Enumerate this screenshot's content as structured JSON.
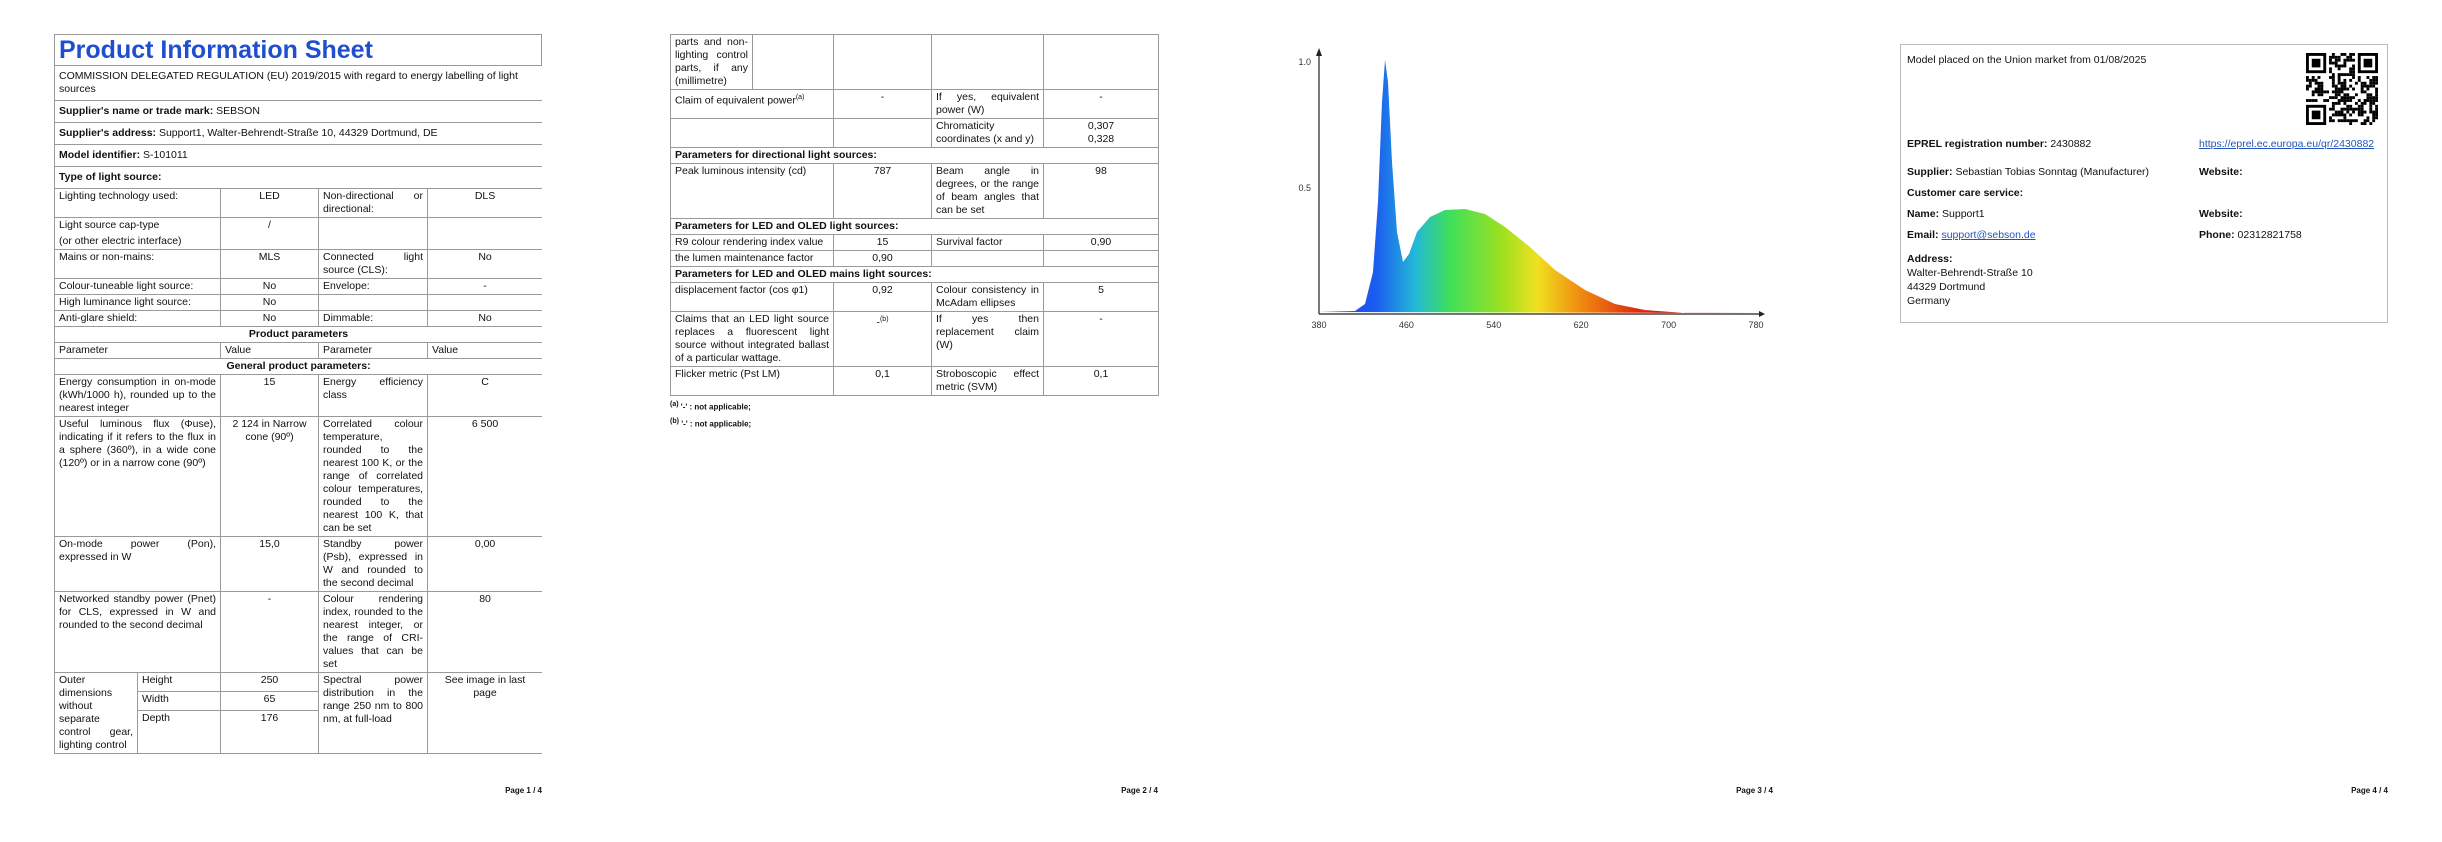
{
  "sheet": {
    "title": "Product Information Sheet",
    "regulation": "COMMISSION DELEGATED REGULATION (EU) 2019/2015 with regard to energy labelling of light sources",
    "supplier": {
      "label": "Supplier's name or trade mark:",
      "value": "SEBSON"
    },
    "address": {
      "label": "Supplier's address:",
      "value": "Support1, Walter-Behrendt-Straße 10, 44329 Dortmund, DE"
    },
    "model": {
      "label": "Model identifier:",
      "value": "S-101011"
    },
    "type_heading": "Type of light source:",
    "type_rows": [
      [
        "Lighting technology used:",
        "LED",
        "Non-directional or directional:",
        "DLS"
      ],
      [
        "Light source cap-type",
        "(or other electric interface)",
        "/"
      ],
      [
        "Mains or non-mains:",
        "MLS",
        "Connected light source (CLS):",
        "No"
      ],
      [
        "Colour-tuneable light source:",
        "No",
        "Envelope:",
        "-"
      ],
      [
        "High luminance light source:",
        "No"
      ],
      [
        "Anti-glare shield:",
        "No",
        "Dimmable:",
        "No"
      ]
    ],
    "product_parameters": "Product parameters",
    "header": [
      "Parameter",
      "Value",
      "Parameter",
      "Value"
    ],
    "general_heading": "General product parameters:",
    "general_rows": [
      [
        "Energy consumption in on-mode (kWh/1000 h), rounded up to the nearest integer",
        "15",
        "Energy efficiency class",
        "C"
      ],
      [
        "Useful luminous flux (Φuse), indicating if it refers to the flux in a sphere (360º), in a wide cone (120º) or in a narrow cone (90º)",
        "2 124 in Narrow cone (90º)",
        "Correlated colour temperature, rounded to the nearest 100 K, or the range of correlated colour temperatures, rounded to the nearest 100 K, that can be set",
        "6 500"
      ],
      [
        "On-mode power (Pon), expressed in W",
        "15,0",
        "Standby power (Psb), expressed in W and rounded to the second decimal",
        "0,00"
      ],
      [
        "Networked standby power (Pnet) for CLS, expressed in W and rounded to the second decimal",
        "-",
        "Colour rendering index, rounded to the nearest integer, or the range of CRI-values that can be set",
        "80"
      ]
    ],
    "dimensions": {
      "label": "Outer dimensions without separate control gear, lighting control",
      "label_continued": "parts and non-lighting control parts, if any (millimetre)",
      "rows": [
        [
          "Height",
          "250"
        ],
        [
          "Width",
          "65"
        ],
        [
          "Depth",
          "176"
        ]
      ]
    },
    "spectral": [
      "Spectral power distribution in the range 250 nm to 800 nm, at full-load",
      "See image in last page"
    ],
    "page_label": "Page 1 / 4"
  },
  "sheet2": {
    "rows_a": [
      [
        "Claim of equivalent power",
        "(a)",
        "-",
        "If yes, equivalent power (W)",
        "-"
      ],
      [
        "Chromaticity coordinates (x and y)",
        "0,307",
        "0,328"
      ]
    ],
    "directional_heading": "Parameters for directional light sources:",
    "directional_row": [
      "Peak luminous intensity (cd)",
      "787",
      "Beam angle in degrees, or the range of beam angles that can be set",
      "98"
    ],
    "led_heading": "Parameters for LED and OLED light sources:",
    "led_rows": [
      [
        "R9 colour rendering index value",
        "15",
        "Survival factor",
        "0,90"
      ],
      [
        "the lumen maintenance factor",
        "0,90"
      ]
    ],
    "mains_heading": "Parameters for LED and OLED mains light sources:",
    "mains_rows": [
      [
        "displacement factor (cos φ1)",
        "0,92",
        "Colour consistency in McAdam ellipses",
        "5"
      ],
      [
        "Claims that an LED light source replaces a fluorescent light source without integrated ballast of a particular wattage.",
        "-",
        "(b)",
        "If yes then replacement claim (W)",
        "-"
      ],
      [
        "Flicker metric (Pst LM)",
        "0,1",
        "Stroboscopic effect metric (SVM)",
        "0,1"
      ]
    ],
    "notes": [
      [
        "(a)",
        "'-' : not applicable;"
      ],
      [
        "(b)",
        "'-' : not applicable;"
      ]
    ],
    "page_label": "Page 2 / 4"
  },
  "spectrum": {
    "x_tick_labels": [
      "380",
      "460",
      "540",
      "620",
      "700",
      "780"
    ],
    "y_tick_labels": [
      "0.5",
      "1.0"
    ],
    "page_label": "Page 3 / 4"
  },
  "contact": {
    "market": "Model placed on the Union market from 01/08/2025",
    "eprel": {
      "label": "EPREL registration number:",
      "value": "2430882",
      "link": "https://eprel.ec.europa.eu/qr/2430882"
    },
    "supplier": {
      "label": "Supplier:",
      "value": "Sebastian Tobias Sonntag (Manufacturer)",
      "website": "Website:"
    },
    "customer_care": "Customer care service:",
    "name": {
      "label": "Name:",
      "value": "Support1",
      "website": "Website:"
    },
    "email": {
      "label": "Email:",
      "value": "support@sebson.de"
    },
    "phone": {
      "label": "Phone:",
      "value": "02312821758"
    },
    "address": {
      "label": "Address:",
      "lines": [
        "Walter-Behrendt-Straße 10",
        "44329 Dortmund",
        "Germany"
      ]
    },
    "page_label": "Page 4 / 4"
  }
}
